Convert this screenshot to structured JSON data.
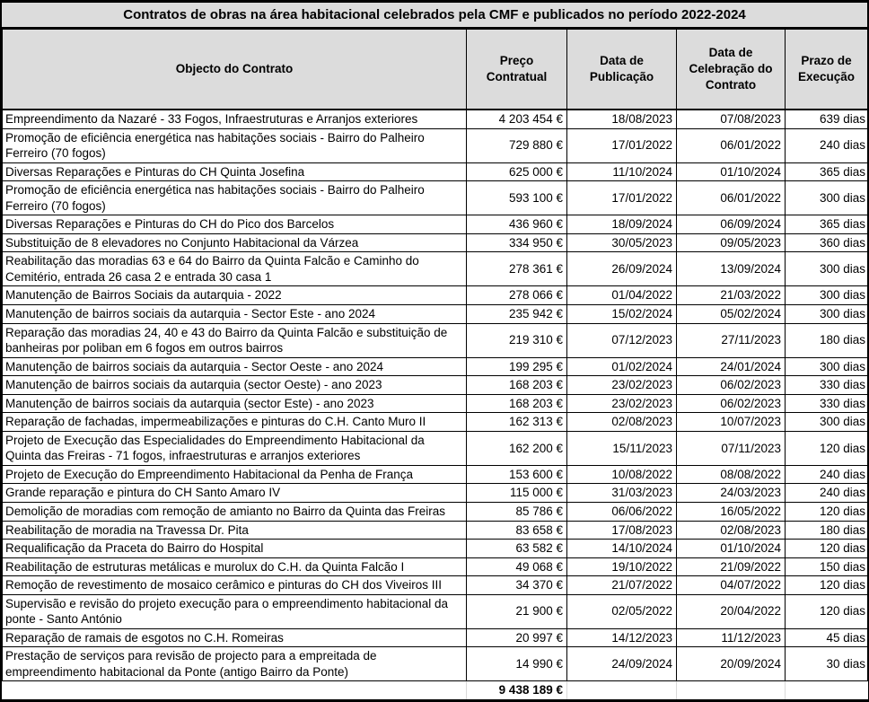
{
  "title": "Contratos de obras na área habitacional celebrados pela CMF e publicados no período 2022-2024",
  "colors": {
    "header_bg": "#dcdcdc",
    "border": "#000000",
    "text": "#000000"
  },
  "table": {
    "columns": [
      "Objecto do Contrato",
      "Preço Contratual",
      "Data de Publicação",
      "Data de Celebração do Contrato",
      "Prazo de Execução"
    ],
    "rows": [
      [
        "Empreendimento da Nazaré - 33 Fogos, Infraestruturas e Arranjos exteriores",
        "4 203 454 €",
        "18/08/2023",
        "07/08/2023",
        "639 dias"
      ],
      [
        "Promoção de eficiência energética nas habitações sociais - Bairro do Palheiro Ferreiro (70 fogos)",
        "729 880 €",
        "17/01/2022",
        "06/01/2022",
        "240 dias"
      ],
      [
        "Diversas Reparações e Pinturas do CH Quinta Josefina",
        "625 000 €",
        "11/10/2024",
        "01/10/2024",
        "365 dias"
      ],
      [
        "Promoção de eficiência energética nas habitações sociais - Bairro do Palheiro Ferreiro (70 fogos)",
        "593 100 €",
        "17/01/2022",
        "06/01/2022",
        "300 dias"
      ],
      [
        "Diversas Reparações e Pinturas do CH do Pico dos Barcelos",
        "436 960 €",
        "18/09/2024",
        "06/09/2024",
        "365 dias"
      ],
      [
        "Substituição de 8 elevadores no Conjunto Habitacional da Várzea",
        "334 950 €",
        "30/05/2023",
        "09/05/2023",
        "360 dias"
      ],
      [
        "Reabilitação das moradias 63 e 64 do Bairro da Quinta Falcão e Caminho do Cemitério, entrada 26 casa 2 e entrada 30 casa 1",
        "278 361 €",
        "26/09/2024",
        "13/09/2024",
        "300 dias"
      ],
      [
        "Manutenção de Bairros Sociais da autarquia - 2022",
        "278 066 €",
        "01/04/2022",
        "21/03/2022",
        "300 dias"
      ],
      [
        "Manutenção de bairros sociais da autarquia - Sector Este - ano 2024",
        "235 942 €",
        "15/02/2024",
        "05/02/2024",
        "300 dias"
      ],
      [
        "Reparação das moradias 24, 40 e 43 do Bairro da Quinta Falcão e substituição de banheiras por poliban em 6 fogos em outros bairros",
        "219 310 €",
        "07/12/2023",
        "27/11/2023",
        "180 dias"
      ],
      [
        "Manutenção de bairros sociais da autarquia - Sector Oeste - ano 2024",
        "199 295 €",
        "01/02/2024",
        "24/01/2024",
        "300 dias"
      ],
      [
        "Manutenção de bairros sociais da autarquia (sector Oeste) - ano 2023",
        "168 203 €",
        "23/02/2023",
        "06/02/2023",
        "330 dias"
      ],
      [
        "Manutenção de bairros sociais da autarquia (sector Este) - ano 2023",
        "168 203 €",
        "23/02/2023",
        "06/02/2023",
        "330 dias"
      ],
      [
        "Reparação de fachadas, impermeabilizações e pinturas do C.H. Canto Muro II",
        "162 313 €",
        "02/08/2023",
        "10/07/2023",
        "300 dias"
      ],
      [
        "Projeto de Execução das Especialidades do Empreendimento Habitacional da Quinta das Freiras - 71 fogos, infraestruturas e arranjos exteriores",
        "162 200 €",
        "15/11/2023",
        "07/11/2023",
        "120 dias"
      ],
      [
        "Projeto de Execução do Empreendimento Habitacional da Penha de França",
        "153 600 €",
        "10/08/2022",
        "08/08/2022",
        "240 dias"
      ],
      [
        "Grande reparação e pintura do CH Santo Amaro IV",
        "115 000 €",
        "31/03/2023",
        "24/03/2023",
        "240 dias"
      ],
      [
        "Demolição de moradias com remoção de amianto no Bairro da Quinta das Freiras",
        "85 786 €",
        "06/06/2022",
        "16/05/2022",
        "120 dias"
      ],
      [
        "Reabilitação de moradia na Travessa Dr. Pita",
        "83 658 €",
        "17/08/2023",
        "02/08/2023",
        "180 dias"
      ],
      [
        "Requalificação da Praceta do Bairro do Hospital",
        "63 582 €",
        "14/10/2024",
        "01/10/2024",
        "120 dias"
      ],
      [
        "Reabilitação de estruturas metálicas e murolux do C.H. da Quinta Falcão I",
        "49 068 €",
        "19/10/2022",
        "21/09/2022",
        "150 dias"
      ],
      [
        "Remoção de revestimento de mosaico cerâmico e pinturas do CH dos Viveiros III",
        "34 370 €",
        "21/07/2022",
        "04/07/2022",
        "120 dias"
      ],
      [
        "Supervisão e revisão do projeto execução para o empreendimento habitacional da ponte - Santo António",
        "21 900 €",
        "02/05/2022",
        "20/04/2022",
        "120 dias"
      ],
      [
        "Reparação de ramais de esgotos no C.H. Romeiras",
        "20 997 €",
        "14/12/2023",
        "11/12/2023",
        "45 dias"
      ],
      [
        "Prestação de serviços para revisão de projecto para a empreitada de empreendimento habitacional da Ponte (antigo Bairro da Ponte)",
        "14 990 €",
        "24/09/2024",
        "20/09/2024",
        "30 dias"
      ]
    ],
    "total": "9 438 189 €"
  }
}
